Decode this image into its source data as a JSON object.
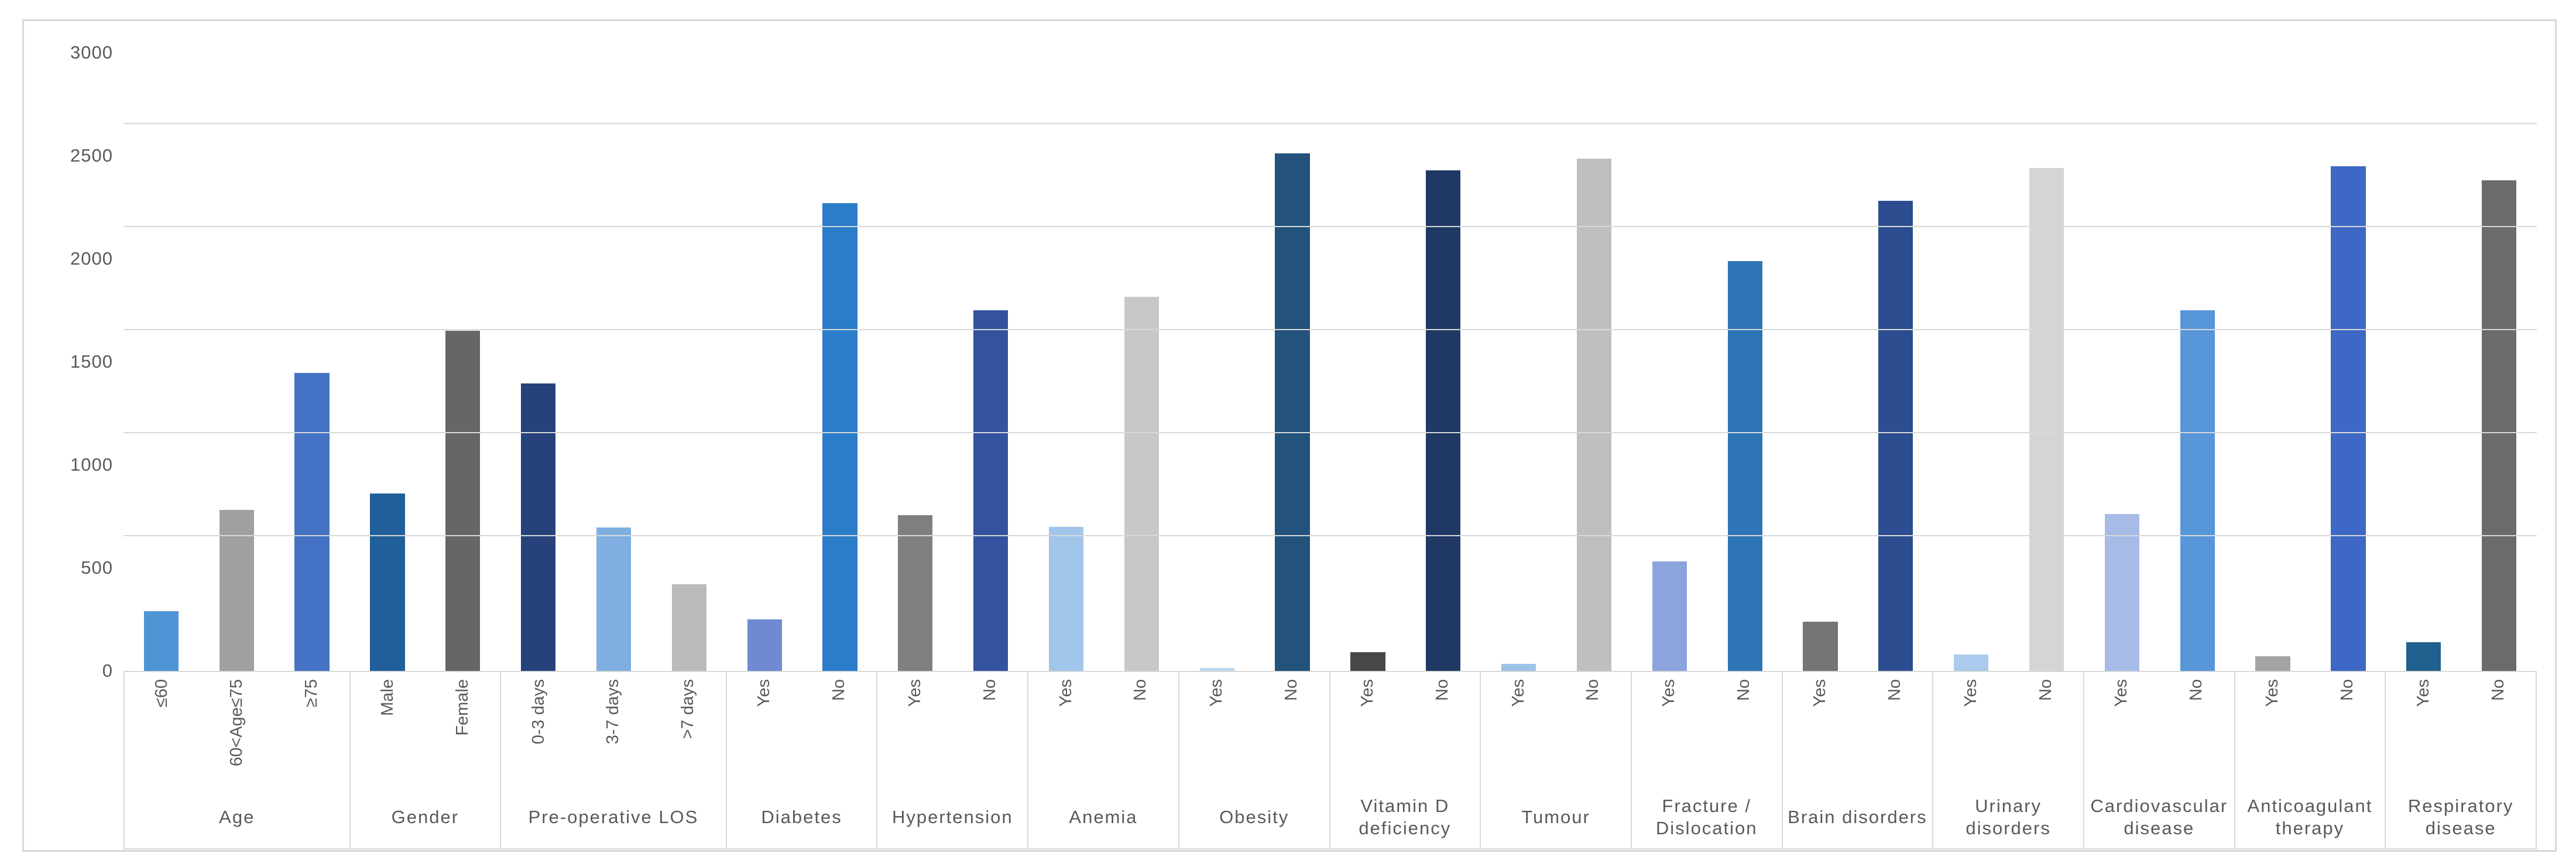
{
  "chart_data": {
    "type": "bar",
    "title": "",
    "xlabel": "",
    "ylabel": "",
    "ylim": [
      0,
      3000
    ],
    "yticks": [
      0,
      500,
      1000,
      1500,
      2000,
      2500,
      3000
    ],
    "grid": true,
    "legend": "none",
    "bar_orientation": "vertical",
    "groups": [
      {
        "label": "Age",
        "bars": [
          {
            "category": "≤60",
            "value": 290,
            "color": "#4E95D6"
          },
          {
            "category": "60<Age≤75",
            "value": 780,
            "color": "#A0A0A0"
          },
          {
            "category": "≥75",
            "value": 1445,
            "color": "#4472C4"
          }
        ]
      },
      {
        "label": "Gender",
        "bars": [
          {
            "category": "Male",
            "value": 860,
            "color": "#215F9A"
          },
          {
            "category": "Female",
            "value": 1650,
            "color": "#666666"
          }
        ]
      },
      {
        "label": "Pre-operative LOS",
        "bars": [
          {
            "category": "0-3 days",
            "value": 1395,
            "color": "#27417B"
          },
          {
            "category": "3-7 days",
            "value": 695,
            "color": "#7EAFE0"
          },
          {
            "category": ">7 days",
            "value": 420,
            "color": "#BBBBBB"
          }
        ]
      },
      {
        "label": "Diabetes",
        "bars": [
          {
            "category": "Yes",
            "value": 250,
            "color": "#6E8BD1"
          },
          {
            "category": "No",
            "value": 2270,
            "color": "#2B7CC9"
          }
        ]
      },
      {
        "label": "Hypertension",
        "bars": [
          {
            "category": "Yes",
            "value": 755,
            "color": "#7F7F7F"
          },
          {
            "category": "No",
            "value": 1750,
            "color": "#33539E"
          }
        ]
      },
      {
        "label": "Anemia",
        "bars": [
          {
            "category": "Yes",
            "value": 700,
            "color": "#A2C6EA"
          },
          {
            "category": "No",
            "value": 1815,
            "color": "#C8C8C8"
          }
        ]
      },
      {
        "label": "Obesity",
        "bars": [
          {
            "category": "Yes",
            "value": 15,
            "color": "#BDD7EE"
          },
          {
            "category": "No",
            "value": 2510,
            "color": "#23527C"
          }
        ]
      },
      {
        "label": "Vitamin D\ndeficiency",
        "bars": [
          {
            "category": "Yes",
            "value": 90,
            "color": "#474747"
          },
          {
            "category": "No",
            "value": 2430,
            "color": "#203864"
          }
        ]
      },
      {
        "label": "Tumour",
        "bars": [
          {
            "category": "Yes",
            "value": 35,
            "color": "#9DC3E6"
          },
          {
            "category": "No",
            "value": 2485,
            "color": "#BFBFBF"
          }
        ]
      },
      {
        "label": "Fracture /\nDislocation",
        "bars": [
          {
            "category": "Yes",
            "value": 530,
            "color": "#8BA4DB"
          },
          {
            "category": "No",
            "value": 1990,
            "color": "#2E75B6"
          }
        ]
      },
      {
        "label": "Brain disorders",
        "bars": [
          {
            "category": "Yes",
            "value": 240,
            "color": "#757575"
          },
          {
            "category": "No",
            "value": 2280,
            "color": "#2C4D8F"
          }
        ]
      },
      {
        "label": "Urinary\ndisorders",
        "bars": [
          {
            "category": "Yes",
            "value": 80,
            "color": "#A9CBED"
          },
          {
            "category": "No",
            "value": 2440,
            "color": "#D5D5D5"
          }
        ]
      },
      {
        "label": "Cardiovascular\ndisease",
        "bars": [
          {
            "category": "Yes",
            "value": 760,
            "color": "#A6BBE6"
          },
          {
            "category": "No",
            "value": 1750,
            "color": "#5796D9"
          }
        ]
      },
      {
        "label": "Anticoagulant\ntherapy",
        "bars": [
          {
            "category": "Yes",
            "value": 70,
            "color": "#A3A3A3"
          },
          {
            "category": "No",
            "value": 2450,
            "color": "#3D68C5"
          }
        ]
      },
      {
        "label": "Respiratory\ndisease",
        "bars": [
          {
            "category": "Yes",
            "value": 140,
            "color": "#20608F"
          },
          {
            "category": "No",
            "value": 2380,
            "color": "#6B6B6B"
          }
        ]
      }
    ],
    "style": {
      "text_color": "#595959",
      "gridline_color": "#D9D9D9",
      "frame_color": "#D8D8D8",
      "background": "#FFFFFF"
    }
  }
}
